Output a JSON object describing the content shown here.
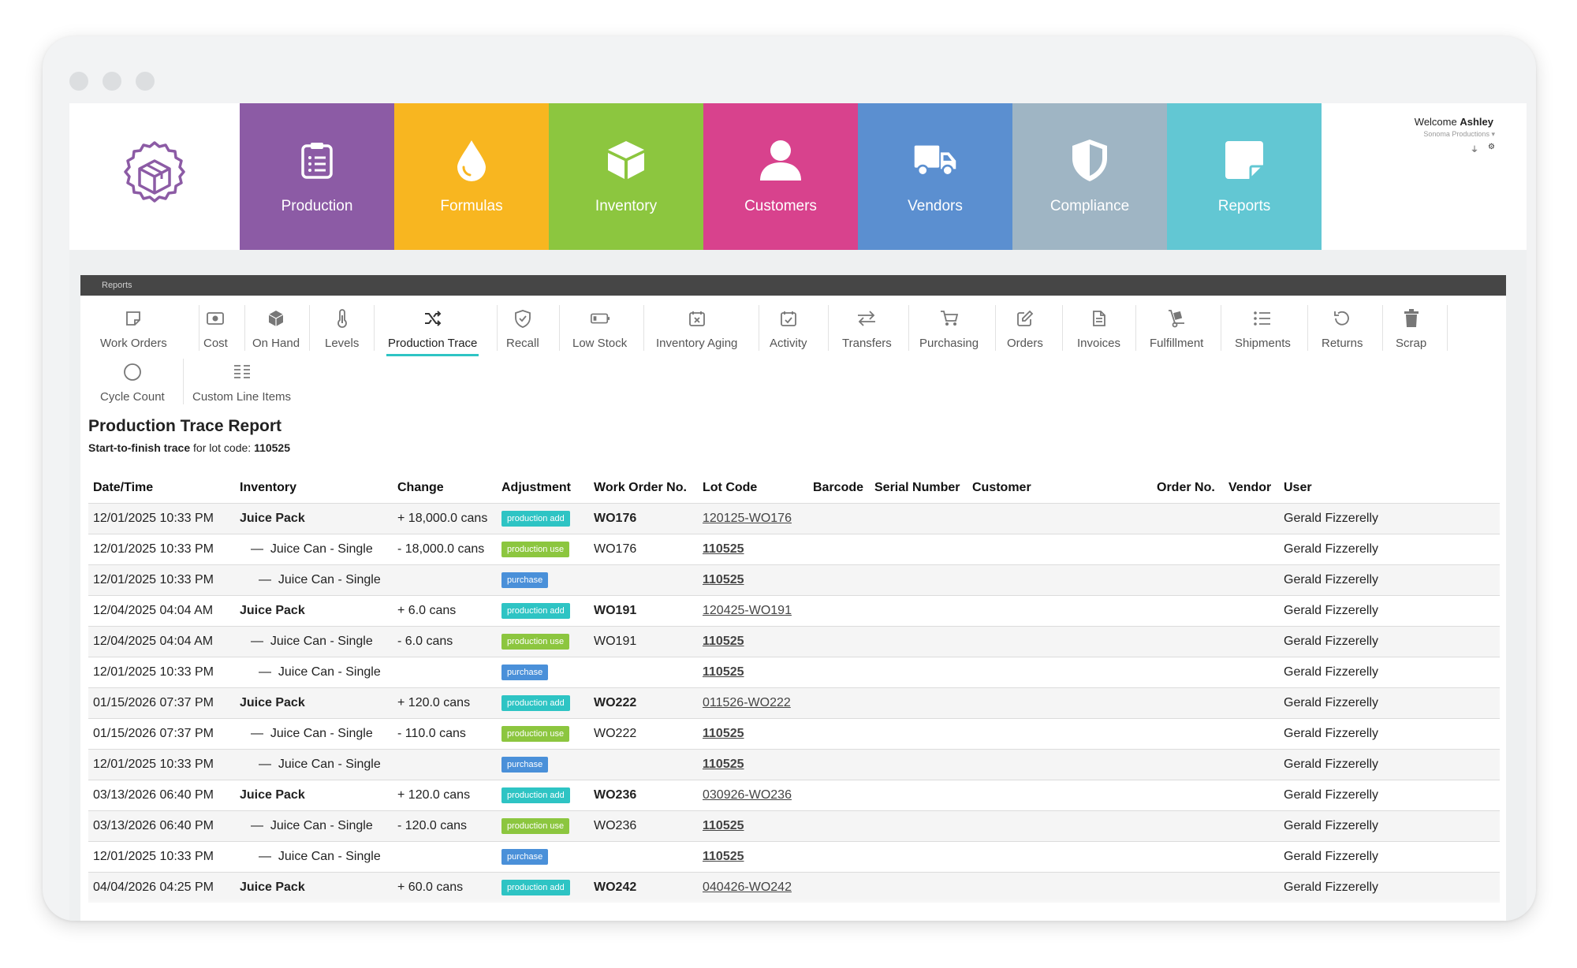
{
  "brand": {
    "colors": {
      "production": "#8c5ba5",
      "formulas": "#f8b620",
      "inventory": "#8cc63f",
      "customers": "#d8428d",
      "vendors": "#5b8fd0",
      "compliance": "#9fb5c4",
      "reports": "#62c7d3",
      "logo": "#8c5ba5",
      "accent": "#2ec4c4"
    }
  },
  "topnav": {
    "tiles": [
      {
        "label": "Production",
        "icon": "clipboard-icon"
      },
      {
        "label": "Formulas",
        "icon": "drop-icon"
      },
      {
        "label": "Inventory",
        "icon": "box-icon"
      },
      {
        "label": "Customers",
        "icon": "person-icon"
      },
      {
        "label": "Vendors",
        "icon": "truck-icon"
      },
      {
        "label": "Compliance",
        "icon": "shield-icon"
      },
      {
        "label": "Reports",
        "icon": "note-icon"
      }
    ],
    "welcome_prefix": "Welcome",
    "user_name": "Ashley",
    "company": "Sonoma Productions",
    "company_caret": "▾",
    "user_icons": [
      "plug-icon",
      "gear-icon"
    ]
  },
  "panel": {
    "bar_title": "Reports",
    "subnav": [
      {
        "label": "Work Orders",
        "icon": "work-orders-icon"
      },
      {
        "label": "Cost",
        "icon": "cost-icon"
      },
      {
        "label": "On Hand",
        "icon": "on-hand-icon"
      },
      {
        "label": "Levels",
        "icon": "thermometer-icon"
      },
      {
        "label": "Production Trace",
        "icon": "shuffle-icon",
        "active": true
      },
      {
        "label": "Recall",
        "icon": "shield-check-icon"
      },
      {
        "label": "Low Stock",
        "icon": "battery-icon"
      },
      {
        "label": "Inventory Aging",
        "icon": "calendar-x-icon"
      },
      {
        "label": "Activity",
        "icon": "calendar-check-icon"
      },
      {
        "label": "Transfers",
        "icon": "arrows-icon"
      },
      {
        "label": "Purchasing",
        "icon": "cart-icon"
      },
      {
        "label": "Orders",
        "icon": "edit-icon"
      },
      {
        "label": "Invoices",
        "icon": "file-icon"
      },
      {
        "label": "Fulfillment",
        "icon": "dolly-icon"
      },
      {
        "label": "Shipments",
        "icon": "list-icon"
      },
      {
        "label": "Returns",
        "icon": "undo-icon"
      },
      {
        "label": "Scrap",
        "icon": "trash-icon"
      },
      {
        "label": "Cycle Count",
        "icon": "circle-icon"
      },
      {
        "label": "Custom Line Items",
        "icon": "lines-icon"
      }
    ]
  },
  "report": {
    "title": "Production Trace Report",
    "subtitle_bold": "Start-to-finish trace",
    "subtitle_middle": " for lot code: ",
    "lot_code": "110525",
    "columns": [
      "Date/Time",
      "Inventory",
      "Change",
      "Adjustment",
      "Work Order No.",
      "Lot Code",
      "Barcode",
      "Serial Number",
      "Customer",
      "Order No.",
      "Vendor",
      "User"
    ],
    "rows": [
      {
        "date": "12/01/2025 10:33 PM",
        "inventory": "Juice Pack",
        "level": 0,
        "change": "+ 18,000.0 cans",
        "adjustment": "production add",
        "work_order": "WO176",
        "lot": "120125-WO176",
        "user": "Gerald Fizzerelly"
      },
      {
        "date": "12/01/2025 10:33 PM",
        "inventory": "Juice Can - Single",
        "level": 1,
        "change": "- 18,000.0 cans",
        "adjustment": "production use",
        "work_order": "WO176",
        "lot": "110525",
        "user": "Gerald Fizzerelly"
      },
      {
        "date": "12/01/2025 10:33 PM",
        "inventory": "Juice Can - Single",
        "level": 2,
        "change": "",
        "adjustment": "purchase",
        "work_order": "",
        "lot": "110525",
        "user": "Gerald Fizzerelly"
      },
      {
        "date": "12/04/2025 04:04 AM",
        "inventory": "Juice Pack",
        "level": 0,
        "change": "+ 6.0 cans",
        "adjustment": "production add",
        "work_order": "WO191",
        "lot": "120425-WO191",
        "user": "Gerald Fizzerelly"
      },
      {
        "date": "12/04/2025 04:04 AM",
        "inventory": "Juice Can - Single",
        "level": 1,
        "change": "- 6.0 cans",
        "adjustment": "production use",
        "work_order": "WO191",
        "lot": "110525",
        "user": "Gerald Fizzerelly"
      },
      {
        "date": "12/01/2025 10:33 PM",
        "inventory": "Juice Can - Single",
        "level": 2,
        "change": "",
        "adjustment": "purchase",
        "work_order": "",
        "lot": "110525",
        "user": "Gerald Fizzerelly"
      },
      {
        "date": "01/15/2026 07:37 PM",
        "inventory": "Juice Pack",
        "level": 0,
        "change": "+ 120.0 cans",
        "adjustment": "production add",
        "work_order": "WO222",
        "lot": "011526-WO222",
        "user": "Gerald Fizzerelly"
      },
      {
        "date": "01/15/2026 07:37 PM",
        "inventory": "Juice Can - Single",
        "level": 1,
        "change": "- 110.0 cans",
        "adjustment": "production use",
        "work_order": "WO222",
        "lot": "110525",
        "user": "Gerald Fizzerelly"
      },
      {
        "date": "12/01/2025 10:33 PM",
        "inventory": "Juice Can - Single",
        "level": 2,
        "change": "",
        "adjustment": "purchase",
        "work_order": "",
        "lot": "110525",
        "user": "Gerald Fizzerelly"
      },
      {
        "date": "03/13/2026 06:40 PM",
        "inventory": "Juice Pack",
        "level": 0,
        "change": "+ 120.0 cans",
        "adjustment": "production add",
        "work_order": "WO236",
        "lot": "030926-WO236",
        "user": "Gerald Fizzerelly"
      },
      {
        "date": "03/13/2026 06:40 PM",
        "inventory": "Juice Can - Single",
        "level": 1,
        "change": "- 120.0 cans",
        "adjustment": "production use",
        "work_order": "WO236",
        "lot": "110525",
        "user": "Gerald Fizzerelly"
      },
      {
        "date": "12/01/2025 10:33 PM",
        "inventory": "Juice Can - Single",
        "level": 2,
        "change": "",
        "adjustment": "purchase",
        "work_order": "",
        "lot": "110525",
        "user": "Gerald Fizzerelly"
      },
      {
        "date": "04/04/2026 04:25 PM",
        "inventory": "Juice Pack",
        "level": 0,
        "change": "+ 60.0 cans",
        "adjustment": "production add",
        "work_order": "WO242",
        "lot": "040426-WO242",
        "user": "Gerald Fizzerelly"
      }
    ]
  }
}
